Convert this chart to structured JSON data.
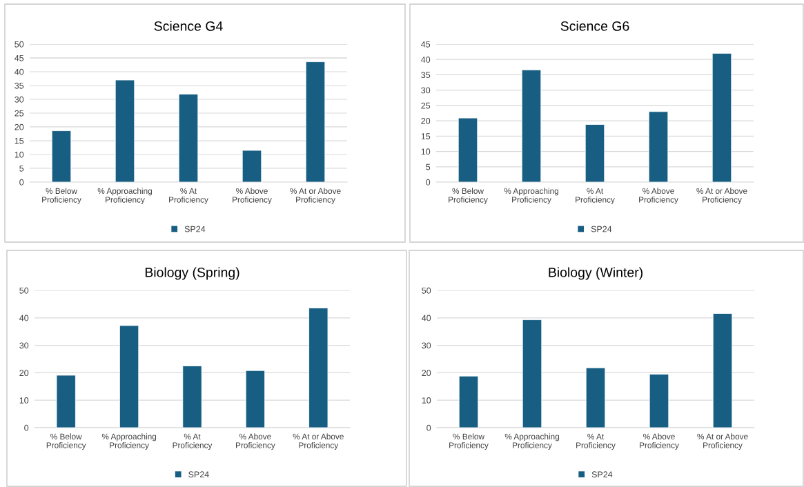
{
  "chart_data": [
    {
      "type": "bar",
      "title": "Science G4",
      "categories": [
        "% Below\nProficiency",
        "% Approaching\nProficiency",
        "% At\nProficiency",
        "% Above\nProficiency",
        "% At or Above\nProficiency"
      ],
      "series": [
        {
          "name": "SP24",
          "color": "#175e82",
          "values": [
            18.6,
            37.0,
            31.9,
            11.5,
            43.6
          ]
        }
      ],
      "ylim": [
        0,
        50
      ],
      "yticks": [
        0,
        5,
        10,
        15,
        20,
        25,
        30,
        35,
        40,
        45,
        50
      ],
      "grid": "y",
      "legend": "bottom"
    },
    {
      "type": "bar",
      "title": "Science G6",
      "categories": [
        "% Below\nProficiency",
        "% Approaching\nProficiency",
        "% At\nProficiency",
        "% Above\nProficiency",
        "% At or Above\nProficiency"
      ],
      "series": [
        {
          "name": "SP24",
          "color": "#175e82",
          "values": [
            20.9,
            36.6,
            18.8,
            23.0,
            42.0
          ]
        }
      ],
      "ylim": [
        0,
        45
      ],
      "yticks": [
        0,
        5,
        10,
        15,
        20,
        25,
        30,
        35,
        40,
        45
      ],
      "grid": "y",
      "legend": "bottom"
    },
    {
      "type": "bar",
      "title": "Biology (Spring)",
      "categories": [
        "% Below\nProficiency",
        "% Approaching\nProficiency",
        "% At\nProficiency",
        "% Above\nProficiency",
        "% At or Above\nProficiency"
      ],
      "series": [
        {
          "name": "SP24",
          "color": "#175e82",
          "values": [
            19.1,
            37.2,
            22.5,
            20.8,
            43.6
          ]
        }
      ],
      "ylim": [
        0,
        50
      ],
      "yticks": [
        0,
        10,
        20,
        30,
        40,
        50
      ],
      "grid": "y",
      "legend": "bottom"
    },
    {
      "type": "bar",
      "title": "Biology (Winter)",
      "categories": [
        "% Below\nProficiency",
        "% Approaching\nProficiency",
        "% At\nProficiency",
        "% Above\nProficiency",
        "% At or Above\nProficiency"
      ],
      "series": [
        {
          "name": "SP24",
          "color": "#175e82",
          "values": [
            18.8,
            39.3,
            21.8,
            19.5,
            41.6
          ]
        }
      ],
      "ylim": [
        0,
        50
      ],
      "yticks": [
        0,
        10,
        20,
        30,
        40,
        50
      ],
      "grid": "y",
      "legend": "bottom"
    }
  ]
}
